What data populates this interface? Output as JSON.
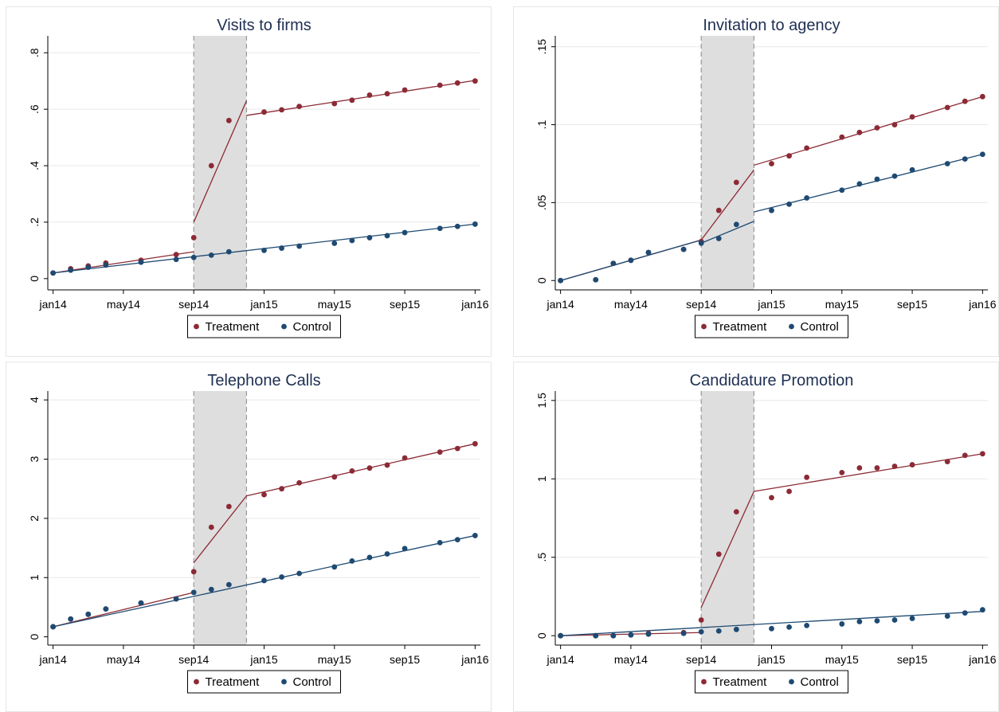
{
  "colors": {
    "treatment": "#8c2a35",
    "control": "#1e4a72",
    "shade": "#dedede",
    "grid": "#e8e8e8"
  },
  "x_ticks": [
    "jan14",
    "may14",
    "sep14",
    "jan15",
    "may15",
    "sep15",
    "jan16"
  ],
  "legend": [
    "Treatment",
    "Control"
  ],
  "chart_data": [
    {
      "type": "scatter",
      "title": "Visits to firms",
      "x_ticks": [
        "jan14",
        "may14",
        "sep14",
        "jan15",
        "may15",
        "sep15",
        "jan16"
      ],
      "y_ticks": [
        "0",
        ".2",
        ".4",
        ".6",
        ".8"
      ],
      "y_tick_values": [
        0,
        0.2,
        0.4,
        0.6,
        0.8
      ],
      "ylim": [
        -0.04,
        0.86
      ],
      "shaded_period": [
        "2014-09",
        "2014-12"
      ],
      "series": [
        {
          "name": "Treatment",
          "points": [
            [
              "2014-01",
              0.02
            ],
            [
              "2014-02",
              0.035
            ],
            [
              "2014-03",
              0.045
            ],
            [
              "2014-04",
              0.055
            ],
            [
              "2014-06",
              0.065
            ],
            [
              "2014-08",
              0.085
            ],
            [
              "2014-09",
              0.145
            ],
            [
              "2014-10",
              0.4
            ],
            [
              "2014-11",
              0.56
            ],
            [
              "2015-01",
              0.59
            ],
            [
              "2015-02",
              0.598
            ],
            [
              "2015-03",
              0.61
            ],
            [
              "2015-05",
              0.62
            ],
            [
              "2015-06",
              0.632
            ],
            [
              "2015-07",
              0.65
            ],
            [
              "2015-08",
              0.655
            ],
            [
              "2015-09",
              0.668
            ],
            [
              "2015-11",
              0.685
            ],
            [
              "2015-12",
              0.693
            ],
            [
              "2016-01",
              0.7
            ]
          ],
          "fit": [
            [
              [
                "2014-01",
                0.02
              ],
              [
                "2014-09",
                0.095
              ]
            ],
            [
              [
                "2014-09",
                0.2
              ],
              [
                "2014-12",
                0.63
              ]
            ],
            [
              [
                "2014-12",
                0.578
              ],
              [
                "2016-01",
                0.702
              ]
            ]
          ]
        },
        {
          "name": "Control",
          "points": [
            [
              "2014-01",
              0.02
            ],
            [
              "2014-02",
              0.03
            ],
            [
              "2014-03",
              0.04
            ],
            [
              "2014-04",
              0.048
            ],
            [
              "2014-06",
              0.058
            ],
            [
              "2014-08",
              0.068
            ],
            [
              "2014-09",
              0.075
            ],
            [
              "2014-10",
              0.083
            ],
            [
              "2014-11",
              0.095
            ],
            [
              "2015-01",
              0.1
            ],
            [
              "2015-02",
              0.108
            ],
            [
              "2015-03",
              0.115
            ],
            [
              "2015-05",
              0.125
            ],
            [
              "2015-06",
              0.135
            ],
            [
              "2015-07",
              0.145
            ],
            [
              "2015-08",
              0.152
            ],
            [
              "2015-09",
              0.163
            ],
            [
              "2015-11",
              0.178
            ],
            [
              "2015-12",
              0.185
            ],
            [
              "2016-01",
              0.193
            ]
          ],
          "fit": [
            [
              [
                "2014-01",
                0.02
              ],
              [
                "2016-01",
                0.193
              ]
            ]
          ]
        }
      ]
    },
    {
      "type": "scatter",
      "title": "Invitation to agency",
      "x_ticks": [
        "jan14",
        "may14",
        "sep14",
        "jan15",
        "may15",
        "sep15",
        "jan16"
      ],
      "y_ticks": [
        "0",
        ".05",
        ".1",
        ".15"
      ],
      "y_tick_values": [
        0,
        0.05,
        0.1,
        0.15
      ],
      "ylim": [
        -0.006,
        0.157
      ],
      "shaded_period": [
        "2014-09",
        "2014-12"
      ],
      "series": [
        {
          "name": "Treatment",
          "points": [
            [
              "2014-01",
              0.0
            ],
            [
              "2014-03",
              0.0005
            ],
            [
              "2014-04",
              0.011
            ],
            [
              "2014-05",
              0.013
            ],
            [
              "2014-06",
              0.018
            ],
            [
              "2014-08",
              0.02
            ],
            [
              "2014-09",
              0.025
            ],
            [
              "2014-10",
              0.045
            ],
            [
              "2014-11",
              0.063
            ],
            [
              "2015-01",
              0.075
            ],
            [
              "2015-02",
              0.08
            ],
            [
              "2015-03",
              0.085
            ],
            [
              "2015-05",
              0.092
            ],
            [
              "2015-06",
              0.095
            ],
            [
              "2015-07",
              0.098
            ],
            [
              "2015-08",
              0.1
            ],
            [
              "2015-09",
              0.105
            ],
            [
              "2015-11",
              0.111
            ],
            [
              "2015-12",
              0.115
            ],
            [
              "2016-01",
              0.118
            ]
          ],
          "fit": [
            [
              [
                "2014-01",
                0.0
              ],
              [
                "2014-09",
                0.026
              ]
            ],
            [
              [
                "2014-09",
                0.026
              ],
              [
                "2014-12",
                0.071
              ]
            ],
            [
              [
                "2014-12",
                0.074
              ],
              [
                "2016-01",
                0.118
              ]
            ]
          ]
        },
        {
          "name": "Control",
          "points": [
            [
              "2014-01",
              0.0
            ],
            [
              "2014-03",
              0.0005
            ],
            [
              "2014-04",
              0.011
            ],
            [
              "2014-05",
              0.013
            ],
            [
              "2014-06",
              0.018
            ],
            [
              "2014-08",
              0.02
            ],
            [
              "2014-09",
              0.024
            ],
            [
              "2014-10",
              0.027
            ],
            [
              "2014-11",
              0.036
            ],
            [
              "2015-01",
              0.045
            ],
            [
              "2015-02",
              0.049
            ],
            [
              "2015-03",
              0.053
            ],
            [
              "2015-05",
              0.058
            ],
            [
              "2015-06",
              0.062
            ],
            [
              "2015-07",
              0.065
            ],
            [
              "2015-08",
              0.067
            ],
            [
              "2015-09",
              0.071
            ],
            [
              "2015-11",
              0.075
            ],
            [
              "2015-12",
              0.078
            ],
            [
              "2016-01",
              0.081
            ]
          ],
          "fit": [
            [
              [
                "2014-01",
                0.0
              ],
              [
                "2014-09",
                0.026
              ]
            ],
            [
              [
                "2014-09",
                0.024
              ],
              [
                "2014-12",
                0.038
              ]
            ],
            [
              [
                "2014-12",
                0.044
              ],
              [
                "2016-01",
                0.081
              ]
            ]
          ]
        }
      ]
    },
    {
      "type": "scatter",
      "title": "Telephone Calls",
      "x_ticks": [
        "jan14",
        "may14",
        "sep14",
        "jan15",
        "may15",
        "sep15",
        "jan16"
      ],
      "y_ticks": [
        "0",
        "1",
        "2",
        "3",
        "4"
      ],
      "y_tick_values": [
        0,
        1,
        2,
        3,
        4
      ],
      "ylim": [
        -0.14,
        4.15
      ],
      "shaded_period": [
        "2014-09",
        "2014-12"
      ],
      "series": [
        {
          "name": "Treatment",
          "points": [
            [
              "2014-01",
              0.17
            ],
            [
              "2014-02",
              0.3
            ],
            [
              "2014-03",
              0.38
            ],
            [
              "2014-04",
              0.47
            ],
            [
              "2014-06",
              0.57
            ],
            [
              "2014-08",
              0.64
            ],
            [
              "2014-09",
              1.1
            ],
            [
              "2014-10",
              1.85
            ],
            [
              "2014-11",
              2.2
            ],
            [
              "2015-01",
              2.4
            ],
            [
              "2015-02",
              2.5
            ],
            [
              "2015-03",
              2.6
            ],
            [
              "2015-05",
              2.7
            ],
            [
              "2015-06",
              2.8
            ],
            [
              "2015-07",
              2.85
            ],
            [
              "2015-08",
              2.9
            ],
            [
              "2015-09",
              3.02
            ],
            [
              "2015-11",
              3.12
            ],
            [
              "2015-12",
              3.18
            ],
            [
              "2016-01",
              3.26
            ]
          ],
          "fit": [
            [
              [
                "2014-01",
                0.17
              ],
              [
                "2014-09",
                0.75
              ]
            ],
            [
              [
                "2014-09",
                1.25
              ],
              [
                "2014-12",
                2.38
              ]
            ],
            [
              [
                "2014-12",
                2.38
              ],
              [
                "2016-01",
                3.26
              ]
            ]
          ]
        },
        {
          "name": "Control",
          "points": [
            [
              "2014-01",
              0.17
            ],
            [
              "2014-02",
              0.3
            ],
            [
              "2014-03",
              0.38
            ],
            [
              "2014-04",
              0.47
            ],
            [
              "2014-06",
              0.57
            ],
            [
              "2014-08",
              0.64
            ],
            [
              "2014-09",
              0.75
            ],
            [
              "2014-10",
              0.8
            ],
            [
              "2014-11",
              0.88
            ],
            [
              "2015-01",
              0.95
            ],
            [
              "2015-02",
              1.01
            ],
            [
              "2015-03",
              1.07
            ],
            [
              "2015-05",
              1.18
            ],
            [
              "2015-06",
              1.28
            ],
            [
              "2015-07",
              1.34
            ],
            [
              "2015-08",
              1.4
            ],
            [
              "2015-09",
              1.49
            ],
            [
              "2015-11",
              1.59
            ],
            [
              "2015-12",
              1.64
            ],
            [
              "2016-01",
              1.71
            ]
          ],
          "fit": [
            [
              [
                "2014-01",
                0.17
              ],
              [
                "2016-01",
                1.71
              ]
            ]
          ]
        }
      ]
    },
    {
      "type": "scatter",
      "title": "Candidature Promotion",
      "x_ticks": [
        "jan14",
        "may14",
        "sep14",
        "jan15",
        "may15",
        "sep15",
        "jan16"
      ],
      "y_ticks": [
        "0",
        ".5",
        "1",
        "1.5"
      ],
      "y_tick_values": [
        0,
        0.5,
        1,
        1.5
      ],
      "ylim": [
        -0.06,
        1.56
      ],
      "shaded_period": [
        "2014-09",
        "2014-12"
      ],
      "series": [
        {
          "name": "Treatment",
          "points": [
            [
              "2014-01",
              0.0
            ],
            [
              "2014-03",
              0.0
            ],
            [
              "2014-04",
              0.0
            ],
            [
              "2014-05",
              0.005
            ],
            [
              "2014-06",
              0.015
            ],
            [
              "2014-08",
              0.02
            ],
            [
              "2014-09",
              0.1
            ],
            [
              "2014-10",
              0.52
            ],
            [
              "2014-11",
              0.79
            ],
            [
              "2015-01",
              0.88
            ],
            [
              "2015-02",
              0.92
            ],
            [
              "2015-03",
              1.01
            ],
            [
              "2015-05",
              1.04
            ],
            [
              "2015-06",
              1.07
            ],
            [
              "2015-07",
              1.07
            ],
            [
              "2015-08",
              1.08
            ],
            [
              "2015-09",
              1.09
            ],
            [
              "2015-11",
              1.11
            ],
            [
              "2015-12",
              1.15
            ],
            [
              "2016-01",
              1.16
            ]
          ],
          "fit": [
            [
              [
                "2014-01",
                0.0
              ],
              [
                "2014-09",
                0.02
              ]
            ],
            [
              [
                "2014-09",
                0.18
              ],
              [
                "2014-12",
                0.92
              ]
            ],
            [
              [
                "2014-12",
                0.92
              ],
              [
                "2016-01",
                1.16
              ]
            ]
          ]
        },
        {
          "name": "Control",
          "points": [
            [
              "2014-01",
              0.0
            ],
            [
              "2014-03",
              0.0
            ],
            [
              "2014-04",
              0.0
            ],
            [
              "2014-05",
              0.005
            ],
            [
              "2014-06",
              0.01
            ],
            [
              "2014-08",
              0.015
            ],
            [
              "2014-09",
              0.025
            ],
            [
              "2014-10",
              0.03
            ],
            [
              "2014-11",
              0.04
            ],
            [
              "2015-01",
              0.045
            ],
            [
              "2015-02",
              0.055
            ],
            [
              "2015-03",
              0.065
            ],
            [
              "2015-05",
              0.075
            ],
            [
              "2015-06",
              0.09
            ],
            [
              "2015-07",
              0.095
            ],
            [
              "2015-08",
              0.1
            ],
            [
              "2015-09",
              0.11
            ],
            [
              "2015-11",
              0.125
            ],
            [
              "2015-12",
              0.145
            ],
            [
              "2016-01",
              0.165
            ]
          ],
          "fit": [
            [
              [
                "2014-01",
                0.0
              ],
              [
                "2016-01",
                0.155
              ]
            ]
          ]
        }
      ]
    }
  ]
}
